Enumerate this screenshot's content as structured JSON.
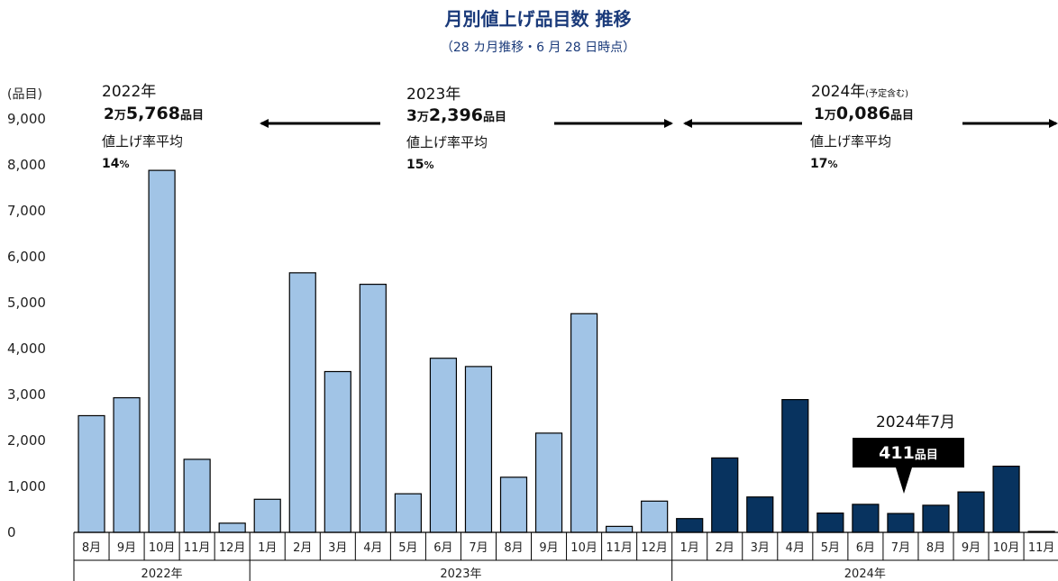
{
  "colors": {
    "bar_light": "#a1c4e6",
    "bar_dark": "#08335f",
    "title": "#1a3a7a",
    "callout_bg": "#000000",
    "callout_fg": "#ffffff"
  },
  "chart_data": {
    "type": "bar",
    "title": "月別値上げ品目数 推移",
    "subtitle": "（28 カ月推移・6 月 28 日時点）",
    "ylabel": "(品目)",
    "ylim": [
      0,
      9000
    ],
    "yticks": [
      0,
      1000,
      2000,
      3000,
      4000,
      5000,
      6000,
      7000,
      8000,
      9000
    ],
    "ytick_labels": [
      "0",
      "1,000",
      "2,000",
      "3,000",
      "4,000",
      "5,000",
      "6,000",
      "7,000",
      "8,000",
      "9,000"
    ],
    "grid": false,
    "categories": [
      "8月",
      "9月",
      "10月",
      "11月",
      "12月",
      "1月",
      "2月",
      "3月",
      "4月",
      "5月",
      "6月",
      "7月",
      "8月",
      "9月",
      "10月",
      "11月",
      "12月",
      "1月",
      "2月",
      "3月",
      "4月",
      "5月",
      "6月",
      "7月",
      "8月",
      "9月",
      "10月",
      "11月"
    ],
    "values": [
      2540,
      2930,
      7880,
      1590,
      200,
      720,
      5650,
      3500,
      5400,
      840,
      3790,
      3610,
      1200,
      2160,
      4760,
      130,
      680,
      300,
      1620,
      770,
      2890,
      420,
      610,
      411,
      590,
      880,
      1440,
      20
    ],
    "year_index": [
      0,
      0,
      0,
      0,
      0,
      1,
      1,
      1,
      1,
      1,
      1,
      1,
      1,
      1,
      1,
      1,
      1,
      2,
      2,
      2,
      2,
      2,
      2,
      2,
      2,
      2,
      2,
      2
    ],
    "year_groups": [
      {
        "label": "2022年",
        "start": 0,
        "end": 4,
        "color": "light"
      },
      {
        "label": "2023年",
        "start": 5,
        "end": 16,
        "color": "light"
      },
      {
        "label": "2024年",
        "start": 17,
        "end": 27,
        "color": "dark"
      }
    ]
  },
  "annotations": {
    "y2022": {
      "year": "2022年",
      "total_num": "2",
      "total_man": "万",
      "total_rest": "5,768",
      "total_unit": "品目",
      "rate_label": "値上げ率平均",
      "rate_num": "14",
      "rate_unit": "%"
    },
    "y2023": {
      "year": "2023年",
      "total_num": "3",
      "total_man": "万",
      "total_rest": "2,396",
      "total_unit": "品目",
      "rate_label": "値上げ率平均",
      "rate_num": "15",
      "rate_unit": "%"
    },
    "y2024": {
      "year": "2024年",
      "year_note": "(予定含む)",
      "total_num": "1",
      "total_man": "万",
      "total_rest": "0,086",
      "total_unit": "品目",
      "rate_label": "値上げ率平均",
      "rate_num": "17",
      "rate_unit": "%"
    },
    "callout": {
      "label": "2024年7月",
      "value": "411",
      "unit": "品目",
      "target_index": 23
    }
  }
}
